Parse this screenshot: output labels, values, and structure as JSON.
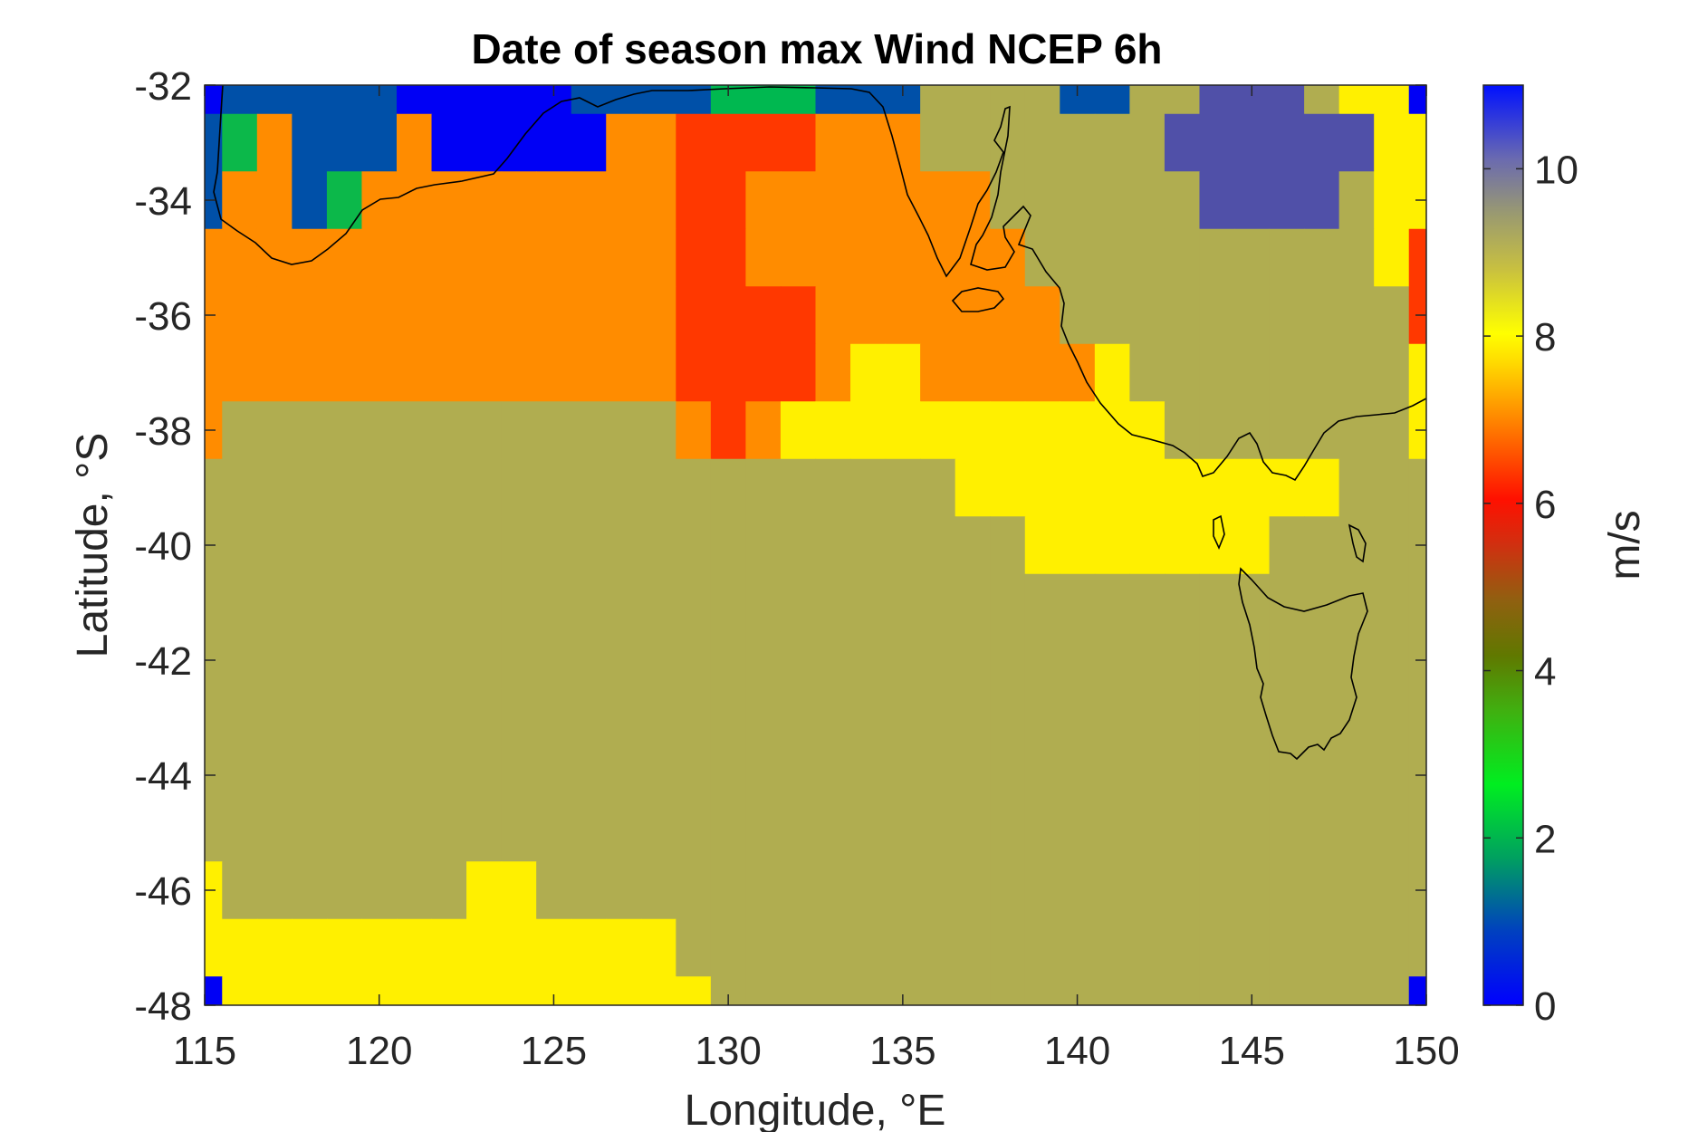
{
  "chart_data": {
    "type": "heatmap",
    "title": "Date of season max Wind NCEP 6h",
    "xlabel": "Longitude, °E",
    "ylabel": "Latitude, °S",
    "xlim": [
      115,
      150
    ],
    "ylim": [
      -48,
      -32
    ],
    "xticks": [
      "115",
      "120",
      "125",
      "130",
      "135",
      "140",
      "145",
      "150"
    ],
    "yticks": [
      "-32",
      "-34",
      "-36",
      "-38",
      "-40",
      "-42",
      "-44",
      "-46",
      "-48"
    ],
    "colorbar": {
      "label": "m/s",
      "min": 0,
      "max": 11,
      "ticks": [
        "0",
        "2",
        "4",
        "6",
        "8",
        "10"
      ]
    },
    "grid": false,
    "colors": {
      "c0": "#0000f5",
      "c1": "#0050a8",
      "c2": "#00b850",
      "c3": "#0cb84a",
      "c6": "#ff3800",
      "c6b": "#ee3818",
      "c7": "#ff8c00",
      "c8": "#fff000",
      "c9": "#b0ad50",
      "c10": "#5050a8",
      "c5": "#ff6000"
    },
    "x": [
      115,
      116,
      117,
      118,
      119,
      120,
      121,
      122,
      123,
      124,
      125,
      126,
      127,
      128,
      129,
      130,
      131,
      132,
      133,
      134,
      135,
      136,
      137,
      138,
      139,
      140,
      141,
      142,
      143,
      144,
      145,
      146,
      147,
      148,
      149,
      150
    ],
    "y": [
      -32,
      -33,
      -34,
      -35,
      -36,
      -37,
      -38,
      -39,
      -40,
      -41,
      -42,
      -43,
      -44,
      -45,
      -46,
      -47,
      -48
    ],
    "values": [
      [
        0,
        1,
        1,
        1,
        1,
        1,
        0,
        0,
        0,
        0,
        0,
        1,
        1,
        1,
        1,
        2,
        2,
        2,
        1,
        1,
        1,
        9,
        9,
        9,
        9,
        1,
        1,
        9,
        9,
        10,
        10,
        10,
        9,
        8,
        8,
        0
      ],
      [
        1,
        3,
        7,
        1,
        1,
        1,
        7,
        0,
        0,
        0,
        0,
        0,
        7,
        7,
        6,
        6,
        6,
        6,
        7,
        7,
        7,
        9,
        9,
        9,
        9,
        9,
        9,
        9,
        10,
        10,
        10,
        10,
        10,
        10,
        8,
        8
      ],
      [
        1,
        7,
        7,
        1,
        3,
        7,
        7,
        7,
        7,
        7,
        7,
        7,
        7,
        7,
        6,
        6,
        7,
        7,
        7,
        7,
        7,
        7,
        7,
        9,
        9,
        9,
        9,
        9,
        9,
        10,
        10,
        10,
        10,
        9,
        8,
        8
      ],
      [
        7,
        7,
        7,
        7,
        7,
        7,
        7,
        7,
        7,
        7,
        7,
        7,
        7,
        7,
        6,
        6,
        7,
        7,
        7,
        7,
        7,
        7,
        7,
        7,
        9,
        9,
        9,
        9,
        9,
        9,
        9,
        9,
        9,
        9,
        8,
        6
      ],
      [
        7,
        7,
        7,
        7,
        7,
        7,
        7,
        7,
        7,
        7,
        7,
        7,
        7,
        7,
        6,
        6,
        6,
        6,
        7,
        7,
        7,
        7,
        7,
        7,
        7,
        9,
        9,
        9,
        9,
        9,
        9,
        9,
        9,
        9,
        9,
        6
      ],
      [
        7,
        7,
        7,
        7,
        7,
        7,
        7,
        7,
        7,
        7,
        7,
        7,
        7,
        7,
        6,
        6,
        6,
        6,
        7,
        8,
        8,
        7,
        7,
        7,
        7,
        7,
        8,
        9,
        9,
        9,
        9,
        9,
        9,
        9,
        9,
        8
      ],
      [
        7,
        9,
        9,
        9,
        9,
        9,
        9,
        9,
        9,
        9,
        9,
        9,
        9,
        9,
        7,
        6,
        7,
        8,
        8,
        8,
        8,
        8,
        8,
        8,
        8,
        8,
        8,
        8,
        9,
        9,
        9,
        9,
        9,
        9,
        9,
        8
      ],
      [
        9,
        9,
        9,
        9,
        9,
        9,
        9,
        9,
        9,
        9,
        9,
        9,
        9,
        9,
        9,
        9,
        9,
        9,
        9,
        9,
        9,
        9,
        8,
        8,
        8,
        8,
        8,
        8,
        8,
        8,
        8,
        8,
        8,
        9,
        9,
        9
      ],
      [
        9,
        9,
        9,
        9,
        9,
        9,
        9,
        9,
        9,
        9,
        9,
        9,
        9,
        9,
        9,
        9,
        9,
        9,
        9,
        9,
        9,
        9,
        9,
        9,
        8,
        8,
        8,
        8,
        8,
        8,
        8,
        9,
        9,
        9,
        9,
        9
      ],
      [
        9,
        9,
        9,
        9,
        9,
        9,
        9,
        9,
        9,
        9,
        9,
        9,
        9,
        9,
        9,
        9,
        9,
        9,
        9,
        9,
        9,
        9,
        9,
        9,
        9,
        9,
        9,
        9,
        9,
        9,
        9,
        9,
        9,
        9,
        9,
        9
      ],
      [
        9,
        9,
        9,
        9,
        9,
        9,
        9,
        9,
        9,
        9,
        9,
        9,
        9,
        9,
        9,
        9,
        9,
        9,
        9,
        9,
        9,
        9,
        9,
        9,
        9,
        9,
        9,
        9,
        9,
        9,
        9,
        9,
        9,
        9,
        9,
        9
      ],
      [
        9,
        9,
        9,
        9,
        9,
        9,
        9,
        9,
        9,
        9,
        9,
        9,
        9,
        9,
        9,
        9,
        9,
        9,
        9,
        9,
        9,
        9,
        9,
        9,
        9,
        9,
        9,
        9,
        9,
        9,
        9,
        9,
        9,
        9,
        9,
        9
      ],
      [
        9,
        9,
        9,
        9,
        9,
        9,
        9,
        9,
        9,
        9,
        9,
        9,
        9,
        9,
        9,
        9,
        9,
        9,
        9,
        9,
        9,
        9,
        9,
        9,
        9,
        9,
        9,
        9,
        9,
        9,
        9,
        9,
        9,
        9,
        9,
        9
      ],
      [
        9,
        9,
        9,
        9,
        9,
        9,
        9,
        9,
        9,
        9,
        9,
        9,
        9,
        9,
        9,
        9,
        9,
        9,
        9,
        9,
        9,
        9,
        9,
        9,
        9,
        9,
        9,
        9,
        9,
        9,
        9,
        9,
        9,
        9,
        9,
        9
      ],
      [
        8,
        9,
        9,
        9,
        9,
        9,
        9,
        9,
        8,
        8,
        9,
        9,
        9,
        9,
        9,
        9,
        9,
        9,
        9,
        9,
        9,
        9,
        9,
        9,
        9,
        9,
        9,
        9,
        9,
        9,
        9,
        9,
        9,
        9,
        9,
        9
      ],
      [
        8,
        8,
        8,
        8,
        8,
        8,
        8,
        8,
        8,
        8,
        8,
        8,
        8,
        8,
        9,
        9,
        9,
        9,
        9,
        9,
        9,
        9,
        9,
        9,
        9,
        9,
        9,
        9,
        9,
        9,
        9,
        9,
        9,
        9,
        9,
        9
      ],
      [
        0,
        8,
        8,
        8,
        8,
        8,
        8,
        8,
        8,
        8,
        8,
        8,
        8,
        8,
        8,
        9,
        9,
        9,
        9,
        9,
        9,
        9,
        9,
        9,
        9,
        9,
        9,
        9,
        9,
        9,
        9,
        9,
        9,
        9,
        9,
        0
      ]
    ]
  }
}
